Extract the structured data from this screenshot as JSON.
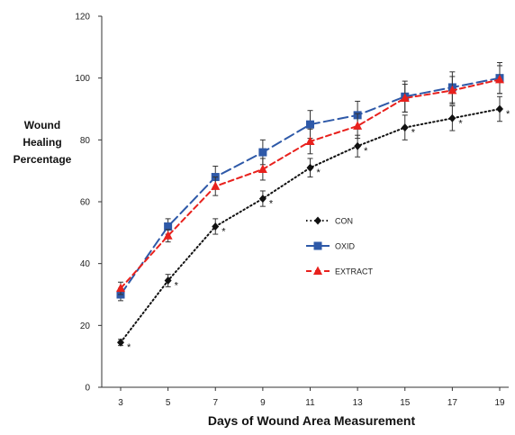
{
  "chart_data": {
    "type": "line",
    "title": "",
    "xlabel": "Days of Wound Area Measurement",
    "ylabel_lines": [
      "Wound",
      "Healing",
      "Percentage"
    ],
    "x": [
      3,
      5,
      7,
      9,
      11,
      13,
      15,
      17,
      19
    ],
    "ylim": [
      0,
      120
    ],
    "yticks": [
      0,
      20,
      40,
      60,
      80,
      100,
      120
    ],
    "grid": false,
    "legend_position": "center-right",
    "series": [
      {
        "name": "CON",
        "values": [
          14.5,
          34.5,
          52,
          61,
          71,
          78,
          84,
          87,
          90
        ],
        "errors": [
          1,
          2,
          2.5,
          2.5,
          3,
          3.5,
          4,
          4,
          4
        ],
        "significance": [
          "*",
          "*",
          "*",
          "*",
          "*",
          "*",
          "*",
          "*",
          "*"
        ],
        "color": "#111111",
        "line_style": "dotted",
        "marker": "diamond"
      },
      {
        "name": "OXID",
        "values": [
          30,
          52,
          68,
          76,
          85,
          88,
          94,
          97,
          100
        ],
        "errors": [
          2,
          2.5,
          3.5,
          4,
          4.5,
          4.5,
          5,
          5,
          5
        ],
        "color": "#2e59a8",
        "line_style": "long-dash",
        "marker": "square"
      },
      {
        "name": "EXTRACT",
        "values": [
          32,
          49,
          65,
          70.5,
          79.5,
          84.5,
          93.5,
          96,
          99.5
        ],
        "errors": [
          2,
          2,
          3,
          3.5,
          4,
          4,
          4.5,
          4.5,
          4.5
        ],
        "color": "#e8211d",
        "line_style": "dashed",
        "marker": "triangle"
      }
    ]
  }
}
